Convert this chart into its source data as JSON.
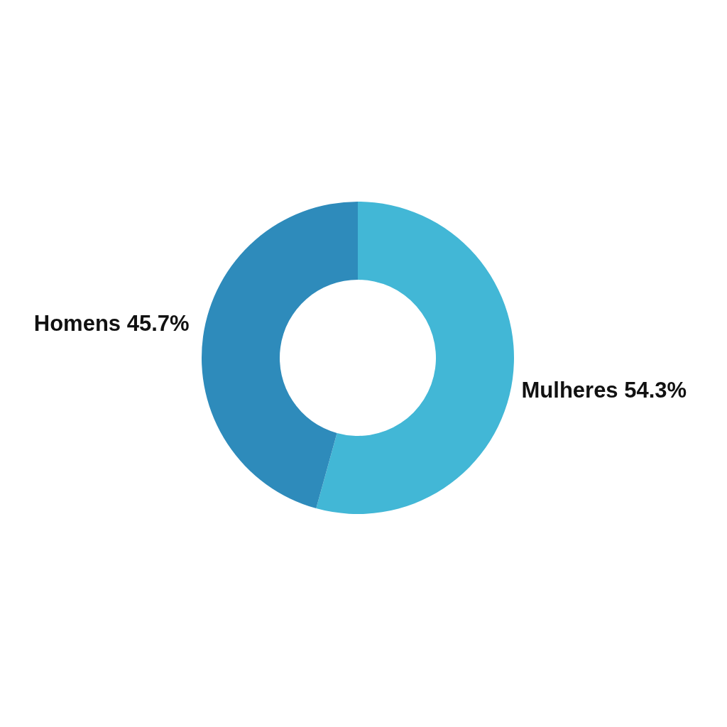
{
  "chart_data": {
    "type": "donut",
    "categories": [
      "Mulheres",
      "Homens"
    ],
    "values": [
      54.3,
      45.7
    ],
    "colors": [
      "#42b7d6",
      "#2e8bbb"
    ],
    "value_labels": [
      "54.3%",
      "45.7%"
    ]
  }
}
